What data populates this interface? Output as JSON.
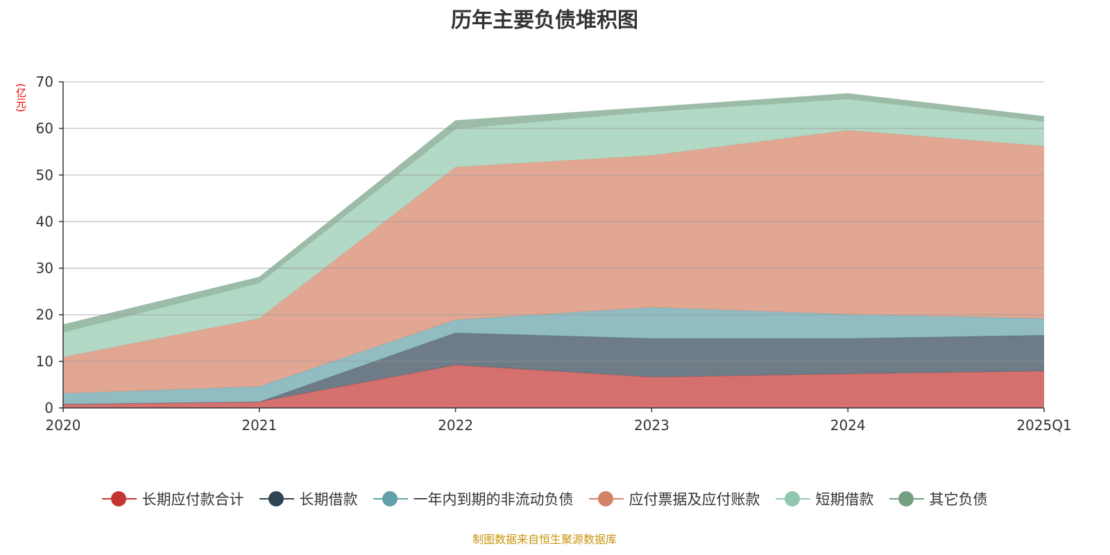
{
  "chart_data": {
    "type": "area",
    "stacked": true,
    "title": "历年主要负债堆积图",
    "ylabel": "(亿元)",
    "ylim": [
      0,
      70
    ],
    "yticks": [
      0,
      10,
      20,
      30,
      40,
      50,
      60,
      70
    ],
    "categories": [
      "2020",
      "2021",
      "2022",
      "2023",
      "2024",
      "2025Q1"
    ],
    "grid": true,
    "legend_position": "bottom",
    "series": [
      {
        "name": "长期应付款合计",
        "color": "#c23531",
        "values": [
          0.8,
          1.3,
          9.2,
          6.6,
          7.3,
          7.9
        ]
      },
      {
        "name": "长期借款",
        "color": "#2f4554",
        "values": [
          0,
          0,
          6.9,
          8.3,
          7.6,
          7.7
        ]
      },
      {
        "name": "一年内到期的非流动负债",
        "color": "#61a0a8",
        "values": [
          2.3,
          3.3,
          2.8,
          6.7,
          5.2,
          3.6
        ]
      },
      {
        "name": "应付票据及应付账款",
        "color": "#d48265",
        "values": [
          7.8,
          14.6,
          32.8,
          32.6,
          39.5,
          37.0
        ]
      },
      {
        "name": "短期借款",
        "color": "#91c7ae",
        "values": [
          5.3,
          7.6,
          8.2,
          9.4,
          6.7,
          5.3
        ]
      },
      {
        "name": "其它负债",
        "color": "#749f83",
        "values": [
          1.7,
          1.3,
          1.8,
          1.0,
          1.2,
          1.1
        ]
      }
    ],
    "source": "制图数据来自恒生聚源数据库"
  }
}
